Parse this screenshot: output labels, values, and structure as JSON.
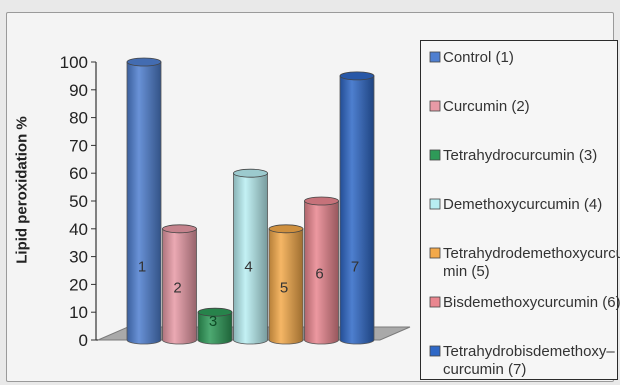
{
  "chart_data": {
    "type": "bar",
    "title": "",
    "xlabel": "",
    "ylabel": "Lipid peroxidation %",
    "ylim": [
      0,
      100
    ],
    "yticks": [
      "0",
      "10",
      "20",
      "30",
      "40",
      "50",
      "60",
      "70",
      "80",
      "90",
      "100"
    ],
    "legend_position": "right",
    "grid": false,
    "bars": [
      {
        "label": "1",
        "value": 100,
        "color": "#4f7fd0"
      },
      {
        "label": "2",
        "value": 40,
        "color": "#e89aa6"
      },
      {
        "label": "3",
        "value": 10,
        "color": "#2e9a58"
      },
      {
        "label": "4",
        "value": 60,
        "color": "#b8eef2"
      },
      {
        "label": "5",
        "value": 40,
        "color": "#f3a94a"
      },
      {
        "label": "6",
        "value": 50,
        "color": "#e9868f"
      },
      {
        "label": "7",
        "value": 95,
        "color": "#2f68c6"
      }
    ],
    "legend": [
      {
        "lines": [
          "Control (1)"
        ],
        "color": "#4f7fd0"
      },
      {
        "lines": [
          "Curcumin (2)"
        ],
        "color": "#e89aa6"
      },
      {
        "lines": [
          "Tetrahydrocurcumin (3)"
        ],
        "color": "#2e9a58"
      },
      {
        "lines": [
          "Demethoxycurcumin (4)"
        ],
        "color": "#b8eef2"
      },
      {
        "lines": [
          "Tetrahydrodemethoxycurcu",
          "min (5)"
        ],
        "color": "#f3a94a"
      },
      {
        "lines": [
          "Bisdemethoxycurcumin (6)"
        ],
        "color": "#e9868f"
      },
      {
        "lines": [
          "Tetrahydrobisdemethoxy–",
          "curcumin (7)"
        ],
        "color": "#2f68c6"
      }
    ]
  }
}
